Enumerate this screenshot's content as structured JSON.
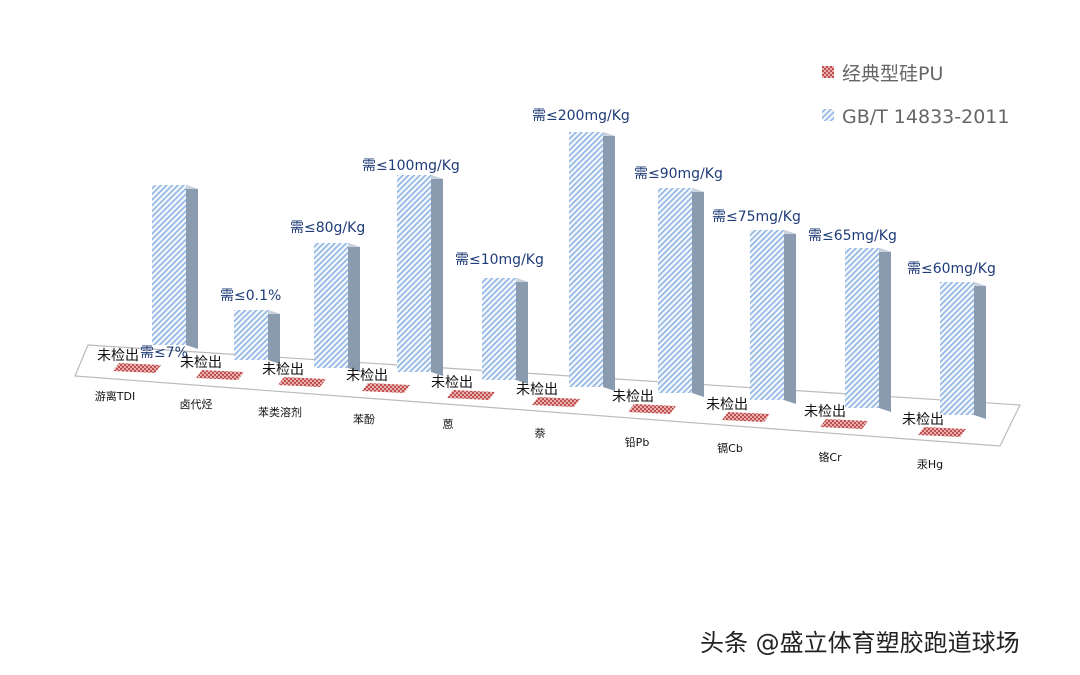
{
  "chart_data": {
    "type": "bar",
    "three_d": true,
    "categories": [
      "游离TDI",
      "卤代烃",
      "苯类溶剂",
      "苯酚",
      "蒽",
      "萘",
      "铅Pb",
      "镉Cb",
      "铬Cr",
      "汞Hg"
    ],
    "series": [
      {
        "name": "经典型硅PU",
        "color": "#c0504d",
        "pattern": "checker",
        "labels": [
          "未检出",
          "未检出",
          "未检出",
          "未检出",
          "未检出",
          "未检出",
          "未检出",
          "未检出",
          "未检出",
          "未检出"
        ]
      },
      {
        "name": "GB/T 14833-2011",
        "color": "#8eb4e3",
        "pattern": "diagonal-stripes",
        "labels": [
          "需≤7%",
          "需≤0.1%",
          "需≤80g/Kg",
          "需≤100mg/Kg",
          "需≤10mg/Kg",
          "需≤200mg/Kg",
          "需≤90mg/Kg",
          "需≤75mg/Kg",
          "需≤65mg/Kg",
          "需≤60mg/Kg"
        ]
      }
    ],
    "legend_position": "top-right",
    "grid": false
  },
  "watermark": "头条 @盛立体育塑胶跑道球场"
}
